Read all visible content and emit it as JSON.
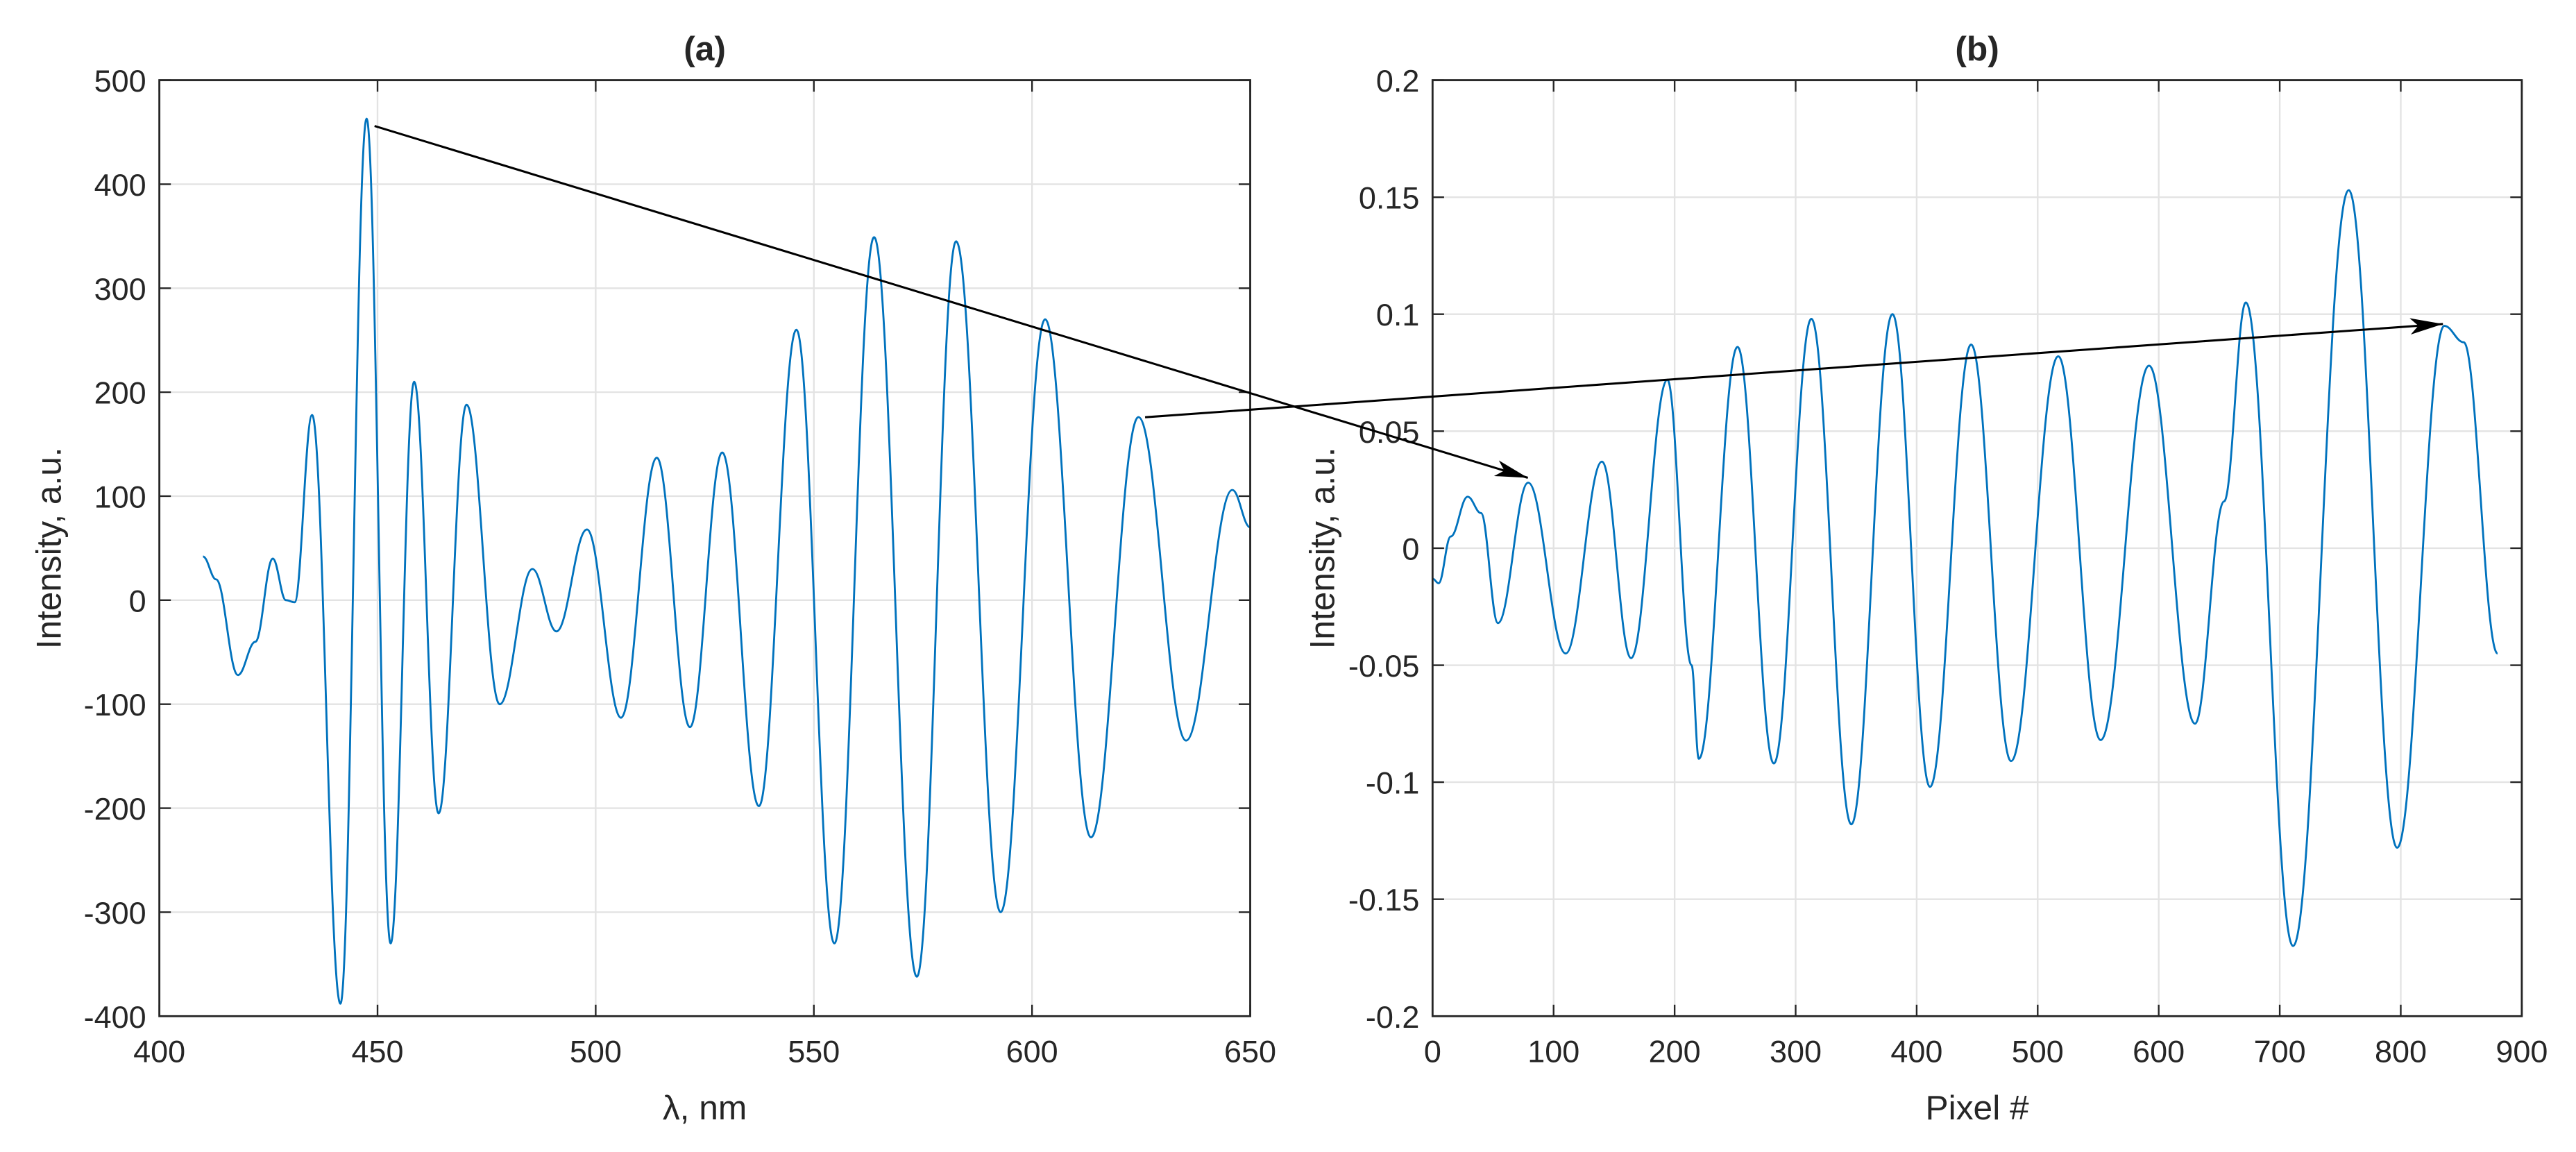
{
  "chart_data": [
    {
      "type": "line",
      "title": "(a)",
      "xlabel": "λ, nm",
      "ylabel": "Intensity, a.u.",
      "color": "#0072bd",
      "grid": true,
      "xlim": [
        400,
        650
      ],
      "ylim": [
        -400,
        500
      ],
      "xticks": [
        400,
        450,
        500,
        550,
        600,
        650
      ],
      "yticks": [
        -400,
        -300,
        -200,
        -100,
        0,
        100,
        200,
        300,
        400,
        500
      ],
      "x": [
        410,
        413,
        418,
        422,
        426,
        429,
        431,
        435,
        441.5,
        447.5,
        453,
        458.4,
        464,
        470.4,
        478,
        485.5,
        491,
        498,
        505.8,
        514,
        521.6,
        529,
        537.4,
        546,
        554.7,
        563.8,
        573.6,
        582.6,
        592.8,
        603,
        613.5,
        624.4,
        635.3,
        645.9,
        650
      ],
      "values": [
        42,
        20,
        -72,
        -40,
        40,
        0,
        -2,
        178,
        -388,
        463,
        -330,
        210,
        -205,
        188,
        -100,
        30,
        -30,
        68,
        -113,
        137,
        -122,
        142,
        -198,
        260,
        -330,
        349,
        -362,
        345,
        -300,
        270,
        -228,
        176,
        -135,
        106,
        70
      ]
    },
    {
      "type": "line",
      "title": "(b)",
      "xlabel": "Pixel #",
      "ylabel": "Intensity, a.u.",
      "color": "#0072bd",
      "grid": true,
      "xlim": [
        0,
        900
      ],
      "ylim": [
        -0.2,
        0.2
      ],
      "xticks": [
        0,
        100,
        200,
        300,
        400,
        500,
        600,
        700,
        800,
        900
      ],
      "yticks": [
        -0.2,
        -0.15,
        -0.1,
        -0.05,
        0,
        0.05,
        0.1,
        0.15,
        0.2
      ],
      "x": [
        0,
        5,
        15,
        29,
        40,
        54,
        79,
        110,
        140,
        164,
        194,
        214,
        220,
        252,
        282,
        313,
        346,
        380,
        411,
        445,
        478,
        517,
        552,
        592,
        630,
        654,
        672,
        711,
        757,
        797,
        836,
        852,
        880
      ],
      "values": [
        -0.013,
        -0.015,
        0.005,
        0.022,
        0.015,
        -0.032,
        0.028,
        -0.045,
        0.037,
        -0.047,
        0.072,
        -0.05,
        -0.09,
        0.086,
        -0.092,
        0.098,
        -0.118,
        0.1,
        -0.102,
        0.087,
        -0.091,
        0.082,
        -0.082,
        0.078,
        -0.075,
        0.02,
        0.105,
        -0.17,
        0.153,
        -0.128,
        0.095,
        0.088,
        -0.045
      ]
    }
  ]
}
